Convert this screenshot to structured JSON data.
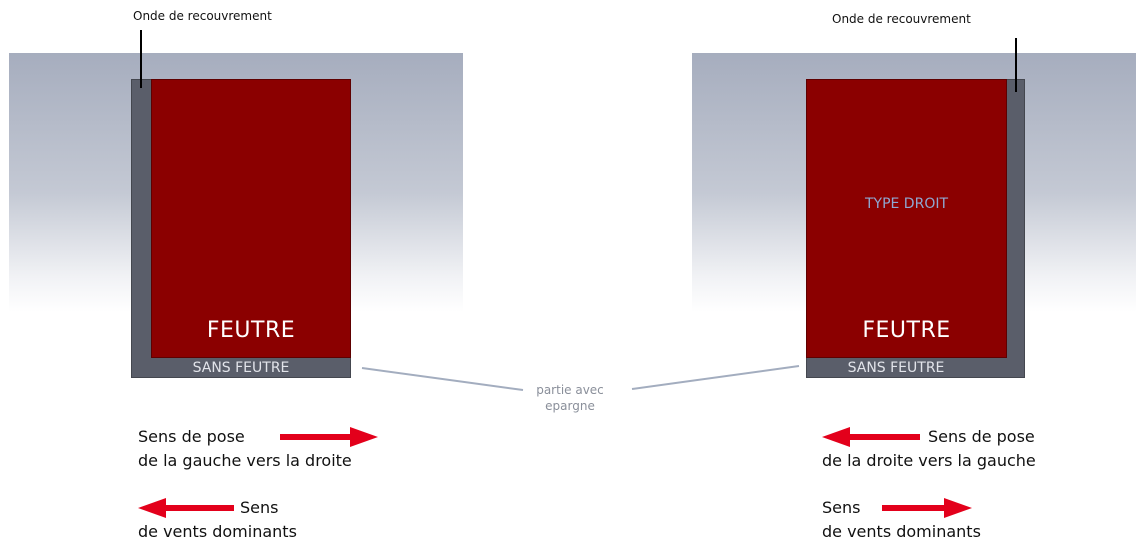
{
  "left": {
    "overlap_label": "Onde de recouvrement",
    "felt_label": "FEUTRE",
    "no_felt_label": "SANS FEUTRE",
    "lay_direction": {
      "line1": "Sens de pose",
      "line2": "de la gauche vers la droite"
    },
    "wind": {
      "line1": "Sens",
      "line2": "de vents dominants"
    }
  },
  "right": {
    "overlap_label": "Onde de recouvrement",
    "felt_label": "FEUTRE",
    "no_felt_label": "SANS FEUTRE",
    "type_label": "TYPE DROIT",
    "lay_direction": {
      "line1": "Sens de pose",
      "line2": "de la droite vers la gauche"
    },
    "wind": {
      "line1": "Sens",
      "line2": "de vents dominants"
    }
  },
  "center_note": {
    "line1": "partie avec",
    "line2": "epargne"
  },
  "colors": {
    "felt": "#8b0000",
    "sheet": "#5a5e6a",
    "arrow": "#e3001b",
    "sky_top": "#a6adbe"
  }
}
